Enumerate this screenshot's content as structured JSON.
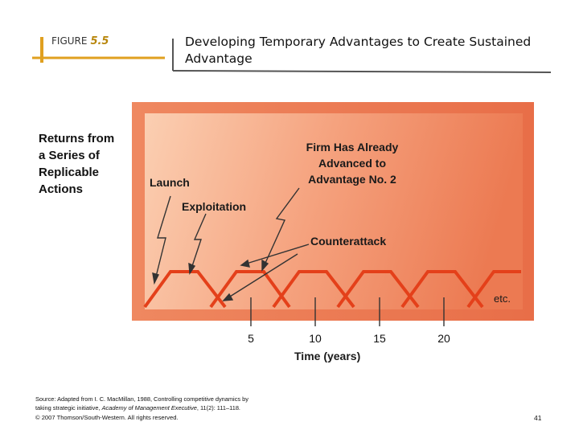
{
  "header": {
    "figure_label": "FIGURE",
    "figure_number": "5.5",
    "title_line1": "Developing Temporary Advantages to Create Sustained",
    "title_line2": "Advantage"
  },
  "left_label": {
    "line1": "Returns from",
    "line2": "a Series of",
    "line3": "Replicable",
    "line4": "Actions"
  },
  "diagram": {
    "launch": "Launch",
    "exploitation": "Exploitation",
    "firm_line1": "Firm Has Already",
    "firm_line2": "Advanced to",
    "firm_line3": "Advantage No. 2",
    "counterattack": "Counterattack",
    "etc": "etc.",
    "axis_ticks": [
      "5",
      "10",
      "15",
      "20"
    ],
    "axis_title": "Time (years)"
  },
  "footer": {
    "source_line1": "Source: Adapted from I. C. MacMillan, 1988, Controlling competitive dynamics by",
    "source_line2_a": "taking strategic initiative, ",
    "source_line2_b": "Academy of Management Executive",
    "source_line2_c": ", 11(2): 111–118.",
    "copyright": "© 2007 Thomson/South-Western. All rights reserved.",
    "page_number": "41"
  },
  "colors": {
    "accent_gold": "#e0a020",
    "panel_outer": "#e8714f",
    "trapezoid": "#e4401a"
  }
}
